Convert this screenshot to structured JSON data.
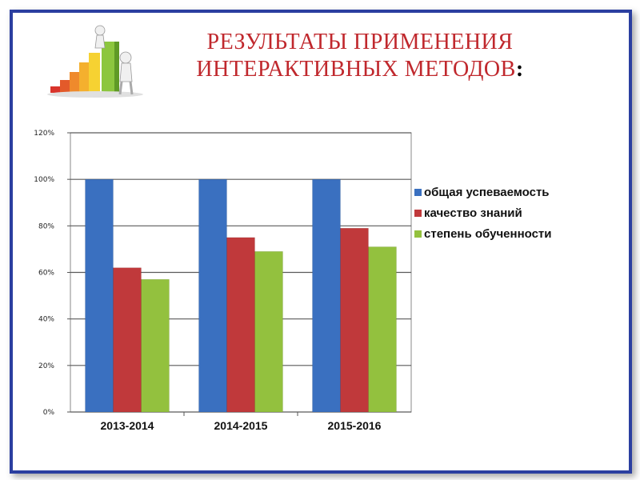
{
  "slide": {
    "title_line1": "РЕЗУЛЬТАТЫ  ПРИМЕНЕНИЯ",
    "title_line2": "ИНТЕРАКТИВНЫХ МЕТОДОВ",
    "title_colon": ":"
  },
  "chart_data": {
    "type": "bar",
    "title": "",
    "xlabel": "",
    "ylabel": "",
    "categories": [
      "2013-2014",
      "2014-2015",
      "2015-2016"
    ],
    "series": [
      {
        "name": "общая успеваемость",
        "values": [
          100,
          100,
          100
        ],
        "color": "#3a70c0"
      },
      {
        "name": "качество знаний",
        "values": [
          62,
          75,
          79
        ],
        "color": "#c0393b"
      },
      {
        "name": "степень обученности",
        "values": [
          57,
          69,
          71
        ],
        "color": "#93c13e"
      }
    ],
    "ylim": [
      0,
      120
    ],
    "yticks": [
      "0%",
      "20%",
      "40%",
      "60%",
      "80%",
      "100%",
      "120%"
    ],
    "grid": true,
    "legend_position": "right"
  }
}
